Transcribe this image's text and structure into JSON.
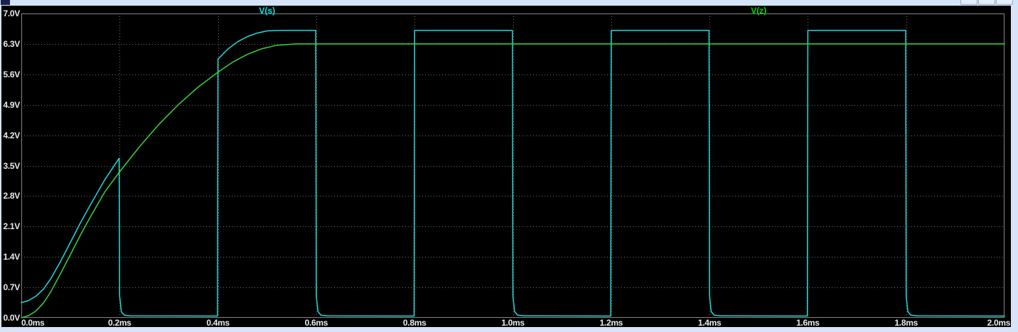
{
  "window": {
    "icon": "waveform-window-icon",
    "buttons": [
      {
        "name": "minimize"
      },
      {
        "name": "maximize"
      },
      {
        "name": "close"
      }
    ],
    "background_color": "#d5e4f7"
  },
  "plot": {
    "background_color": "#000000",
    "frame_color": "#848484",
    "gridline_color": "#6e6e6e",
    "tick_label_color": "#ebebeb"
  },
  "chart_data": {
    "type": "line",
    "title": "",
    "xlabel": "",
    "ylabel": "",
    "xlim_ms": [
      0.0,
      2.0
    ],
    "ylim_V": [
      0.0,
      7.0
    ],
    "x_tick_step_ms": 0.2,
    "y_tick_step_V": 0.7,
    "x_tick_labels": [
      "0.0ms",
      "0.2ms",
      "0.4ms",
      "0.6ms",
      "0.8ms",
      "1.0ms",
      "1.2ms",
      "1.4ms",
      "1.6ms",
      "1.8ms",
      "2.0ms"
    ],
    "y_tick_labels": [
      "7.0V",
      "6.3V",
      "5.6V",
      "4.9V",
      "4.2V",
      "3.5V",
      "2.8V",
      "2.1V",
      "1.4V",
      "0.7V",
      "0.0V"
    ],
    "grid": "dotted",
    "legend_position": "top, centered over each half",
    "series": [
      {
        "name": "V(s)",
        "color": "#1fdcdc",
        "legend_color": "#00e6e6",
        "description": "Switched node: charging ramp chopped to ~0V every other 0.2ms; steady-state square wave high ~6.6V, low ~0V, period 0.4ms, falls with small exponential foot",
        "points_ms_V": [
          [
            0.0,
            0.35
          ],
          [
            0.015,
            0.4
          ],
          [
            0.03,
            0.5
          ],
          [
            0.045,
            0.66
          ],
          [
            0.06,
            0.9
          ],
          [
            0.08,
            1.3
          ],
          [
            0.1,
            1.74
          ],
          [
            0.12,
            2.18
          ],
          [
            0.14,
            2.59
          ],
          [
            0.17,
            3.18
          ],
          [
            0.199,
            3.67
          ],
          [
            0.2,
            0.5
          ],
          [
            0.2035,
            0.14
          ],
          [
            0.2095,
            0.06
          ],
          [
            0.222,
            0.045
          ],
          [
            0.399,
            0.04
          ],
          [
            0.4,
            5.95
          ],
          [
            0.42,
            6.18
          ],
          [
            0.44,
            6.35
          ],
          [
            0.46,
            6.47
          ],
          [
            0.48,
            6.55
          ],
          [
            0.5,
            6.6
          ],
          [
            0.53,
            6.61
          ],
          [
            0.599,
            6.61
          ],
          [
            0.6,
            0.5
          ],
          [
            0.6035,
            0.14
          ],
          [
            0.6095,
            0.06
          ],
          [
            0.622,
            0.045
          ],
          [
            0.799,
            0.04
          ],
          [
            0.8,
            6.61
          ],
          [
            0.999,
            6.61
          ],
          [
            1.0,
            0.5
          ],
          [
            1.0035,
            0.14
          ],
          [
            1.0095,
            0.06
          ],
          [
            1.022,
            0.045
          ],
          [
            1.199,
            0.04
          ],
          [
            1.2,
            6.61
          ],
          [
            1.399,
            6.61
          ],
          [
            1.4,
            0.5
          ],
          [
            1.4035,
            0.14
          ],
          [
            1.4095,
            0.06
          ],
          [
            1.422,
            0.045
          ],
          [
            1.599,
            0.04
          ],
          [
            1.6,
            6.61
          ],
          [
            1.799,
            6.61
          ],
          [
            1.8,
            0.5
          ],
          [
            1.8035,
            0.14
          ],
          [
            1.8095,
            0.06
          ],
          [
            1.822,
            0.045
          ],
          [
            2.0,
            0.04
          ]
        ]
      },
      {
        "name": "V(z)",
        "color": "#38d438",
        "legend_color": "#00d800",
        "description": "Regulated/zener node: smooth charge from 0V settling flat at 6.3V by ~0.52ms",
        "points_ms_V": [
          [
            0.0,
            0.0
          ],
          [
            0.015,
            0.05
          ],
          [
            0.03,
            0.16
          ],
          [
            0.045,
            0.34
          ],
          [
            0.06,
            0.6
          ],
          [
            0.08,
            1.02
          ],
          [
            0.1,
            1.46
          ],
          [
            0.12,
            1.9
          ],
          [
            0.14,
            2.31
          ],
          [
            0.17,
            2.9
          ],
          [
            0.2,
            3.36
          ],
          [
            0.24,
            3.93
          ],
          [
            0.28,
            4.45
          ],
          [
            0.32,
            4.91
          ],
          [
            0.36,
            5.31
          ],
          [
            0.4,
            5.65
          ],
          [
            0.43,
            5.88
          ],
          [
            0.46,
            6.06
          ],
          [
            0.49,
            6.19
          ],
          [
            0.52,
            6.27
          ],
          [
            0.56,
            6.3
          ],
          [
            2.0,
            6.3
          ]
        ]
      }
    ]
  }
}
